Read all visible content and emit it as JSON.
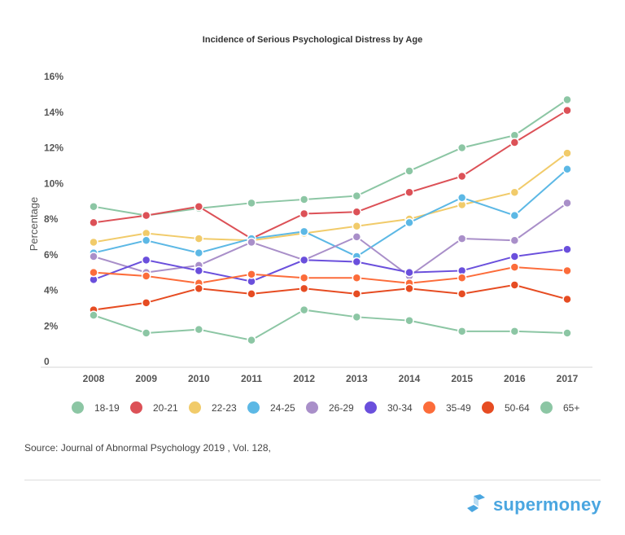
{
  "chart_data": {
    "type": "line",
    "title": "Incidence of Serious Psychological Distress by Age",
    "xlabel": "",
    "ylabel": "Percentage",
    "ylim": [
      0,
      16
    ],
    "yticks": [
      "0",
      "2%",
      "4%",
      "6%",
      "8%",
      "10%",
      "12%",
      "14%",
      "16%"
    ],
    "ytick_values": [
      0,
      2,
      4,
      6,
      8,
      10,
      12,
      14,
      16
    ],
    "categories": [
      "2008",
      "2009",
      "2010",
      "2011",
      "2012",
      "2013",
      "2014",
      "2015",
      "2016",
      "2017"
    ],
    "grid": false,
    "legend_position": "bottom",
    "series": [
      {
        "name": "18-19",
        "color": "#8cc6a4",
        "values": [
          8.7,
          8.2,
          8.6,
          8.9,
          9.1,
          9.3,
          10.7,
          12.0,
          12.7,
          14.7
        ]
      },
      {
        "name": "20-21",
        "color": "#dc5157",
        "values": [
          7.8,
          8.2,
          8.7,
          6.9,
          8.3,
          8.4,
          9.5,
          10.4,
          12.3,
          14.1
        ]
      },
      {
        "name": "22-23",
        "color": "#f1cb6a",
        "values": [
          6.7,
          7.2,
          6.9,
          6.8,
          7.2,
          7.6,
          8.0,
          8.8,
          9.5,
          11.7
        ]
      },
      {
        "name": "24-25",
        "color": "#5cb8e5",
        "values": [
          6.1,
          6.8,
          6.1,
          6.9,
          7.3,
          5.9,
          7.8,
          9.2,
          8.2,
          10.8
        ]
      },
      {
        "name": "26-29",
        "color": "#a98fc9",
        "values": [
          5.9,
          5.0,
          5.4,
          6.7,
          5.7,
          7.0,
          4.8,
          6.9,
          6.8,
          8.9
        ]
      },
      {
        "name": "30-34",
        "color": "#6a4fdc",
        "values": [
          4.6,
          5.7,
          5.1,
          4.5,
          5.7,
          5.6,
          5.0,
          5.1,
          5.9,
          6.3
        ]
      },
      {
        "name": "35-49",
        "color": "#fc6c3a",
        "values": [
          5.0,
          4.8,
          4.4,
          4.9,
          4.7,
          4.7,
          4.4,
          4.7,
          5.3,
          5.1
        ]
      },
      {
        "name": "50-64",
        "color": "#e64c22",
        "values": [
          2.9,
          3.3,
          4.1,
          3.8,
          4.1,
          3.8,
          4.1,
          3.8,
          4.3,
          3.5
        ]
      },
      {
        "name": "65+",
        "color": "#8cc6a4",
        "values": [
          2.6,
          1.6,
          1.8,
          1.2,
          2.9,
          2.5,
          2.3,
          1.7,
          1.7,
          1.6
        ]
      }
    ]
  },
  "footer": {
    "source": "Source: Journal of Abnormal Psychology 2019 , Vol. 128,",
    "logo_text": "supermoney"
  }
}
